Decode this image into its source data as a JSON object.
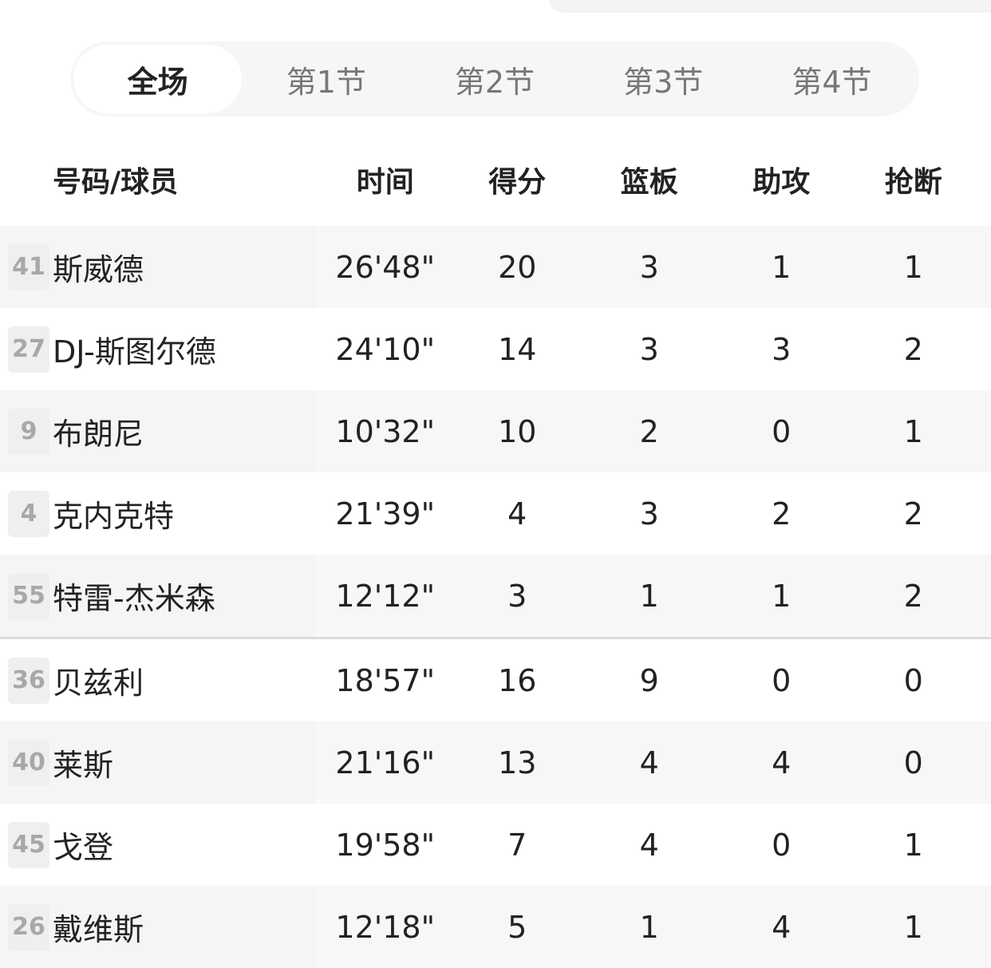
{
  "tabs": [
    {
      "label": "全场",
      "active": true
    },
    {
      "label": "第1节"
    },
    {
      "label": "第2节"
    },
    {
      "label": "第3节"
    },
    {
      "label": "第4节"
    }
  ],
  "columns": [
    "号码/球员",
    "时间",
    "得分",
    "篮板",
    "助攻",
    "抢断"
  ],
  "rows": [
    {
      "num": "41",
      "name": "斯威德",
      "time": "26'48\"",
      "pts": "20",
      "reb": "3",
      "ast": "1",
      "stl": "1"
    },
    {
      "num": "27",
      "name": "DJ-斯图尔德",
      "time": "24'10\"",
      "pts": "14",
      "reb": "3",
      "ast": "3",
      "stl": "2"
    },
    {
      "num": "9",
      "name": "布朗尼",
      "time": "10'32\"",
      "pts": "10",
      "reb": "2",
      "ast": "0",
      "stl": "1"
    },
    {
      "num": "4",
      "name": "克内克特",
      "time": "21'39\"",
      "pts": "4",
      "reb": "3",
      "ast": "2",
      "stl": "2"
    },
    {
      "num": "55",
      "name": "特雷-杰米森",
      "time": "12'12\"",
      "pts": "3",
      "reb": "1",
      "ast": "1",
      "stl": "2"
    },
    {
      "num": "36",
      "name": "贝兹利",
      "time": "18'57\"",
      "pts": "16",
      "reb": "9",
      "ast": "0",
      "stl": "0"
    },
    {
      "num": "40",
      "name": "莱斯",
      "time": "21'16\"",
      "pts": "13",
      "reb": "4",
      "ast": "4",
      "stl": "0"
    },
    {
      "num": "45",
      "name": "戈登",
      "time": "19'58\"",
      "pts": "7",
      "reb": "4",
      "ast": "0",
      "stl": "1"
    },
    {
      "num": "26",
      "name": "戴维斯",
      "time": "12'18\"",
      "pts": "5",
      "reb": "1",
      "ast": "4",
      "stl": "1"
    }
  ]
}
